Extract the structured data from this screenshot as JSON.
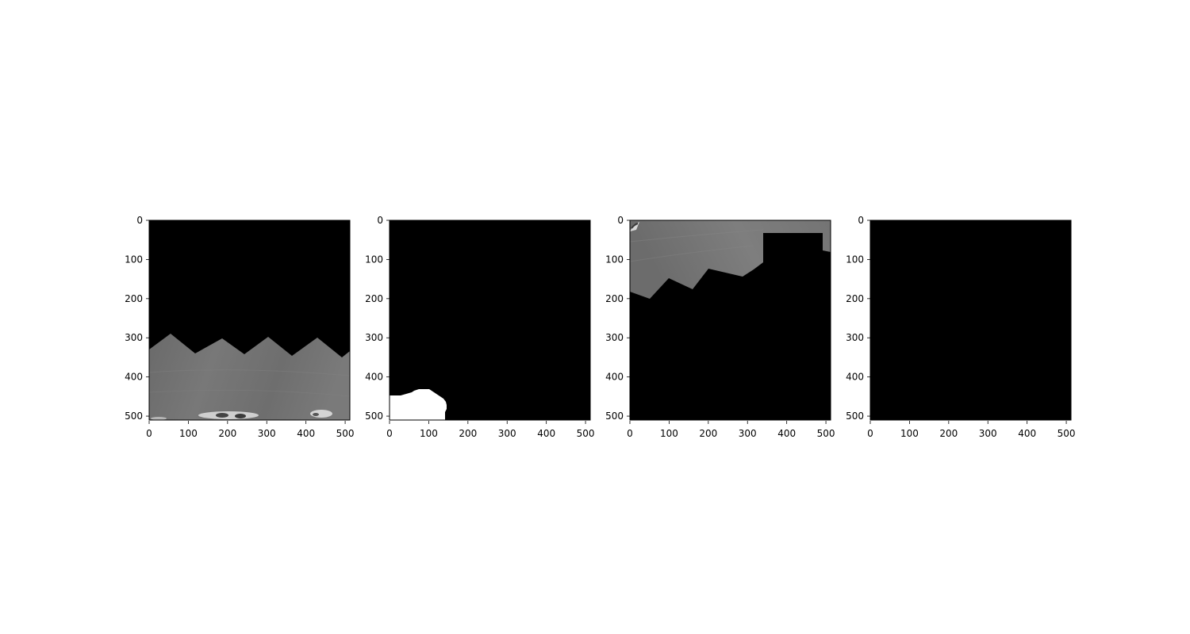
{
  "figure": {
    "background": "#ffffff",
    "panels": [
      {
        "id": "panel-1",
        "content": "ct-slice-masked",
        "x_ticks": [
          "0",
          "100",
          "200",
          "300",
          "400",
          "500"
        ],
        "y_ticks": [
          "0",
          "100",
          "200",
          "300",
          "400",
          "500"
        ]
      },
      {
        "id": "panel-2",
        "content": "binary-mask",
        "x_ticks": [
          "0",
          "100",
          "200",
          "300",
          "400",
          "500"
        ],
        "y_ticks": [
          "0",
          "100",
          "200",
          "300",
          "400",
          "500"
        ]
      },
      {
        "id": "panel-3",
        "content": "ct-slice-masked",
        "x_ticks": [
          "0",
          "100",
          "200",
          "300",
          "400",
          "500"
        ],
        "y_ticks": [
          "0",
          "100",
          "200",
          "300",
          "400",
          "500"
        ]
      },
      {
        "id": "panel-4",
        "content": "empty-mask",
        "x_ticks": [
          "0",
          "100",
          "200",
          "300",
          "400",
          "500"
        ],
        "y_ticks": [
          "0",
          "100",
          "200",
          "300",
          "400",
          "500"
        ]
      }
    ]
  }
}
